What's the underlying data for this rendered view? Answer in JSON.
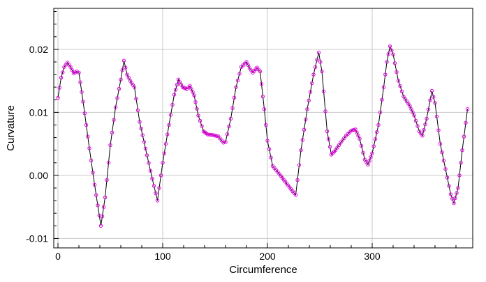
{
  "chart_data": {
    "type": "line",
    "title": "",
    "xlabel": "Circumference",
    "ylabel": "Curvature",
    "xlim": [
      -4,
      396
    ],
    "ylim": [
      -0.0115,
      0.0265
    ],
    "x_ticks": [
      0,
      100,
      200,
      300
    ],
    "x_tick_labels": [
      "0",
      "100",
      "200",
      "300"
    ],
    "y_ticks": [
      -0.01,
      0.0,
      0.01,
      0.02
    ],
    "y_tick_labels": [
      "-0.01",
      "0.00",
      "0.01",
      "0.02"
    ],
    "grid": true,
    "colors": {
      "line": "#000000",
      "markers": "#e600e6",
      "grid": "#c8c8c8",
      "frame": "#000000"
    },
    "series": [
      {
        "marker": "circle",
        "knots": [
          [
            0,
            0.0123
          ],
          [
            3,
            0.0155
          ],
          [
            6,
            0.0172
          ],
          [
            9,
            0.0179
          ],
          [
            12,
            0.0172
          ],
          [
            15,
            0.0162
          ],
          [
            18,
            0.0165
          ],
          [
            20,
            0.0163
          ],
          [
            24,
            0.0117
          ],
          [
            30,
            0.0043
          ],
          [
            35,
            -0.0015
          ],
          [
            41,
            -0.008
          ],
          [
            45,
            -0.0035
          ],
          [
            50,
            0.0048
          ],
          [
            55,
            0.0108
          ],
          [
            60,
            0.0152
          ],
          [
            63,
            0.0182
          ],
          [
            66,
            0.016
          ],
          [
            69,
            0.015
          ],
          [
            73,
            0.014
          ],
          [
            78,
            0.0085
          ],
          [
            85,
            0.0032
          ],
          [
            90,
            -0.0005
          ],
          [
            95,
            -0.004
          ],
          [
            100,
            0.002
          ],
          [
            106,
            0.008
          ],
          [
            111,
            0.0128
          ],
          [
            115,
            0.0152
          ],
          [
            119,
            0.014
          ],
          [
            123,
            0.0137
          ],
          [
            126,
            0.0142
          ],
          [
            130,
            0.0127
          ],
          [
            134,
            0.0095
          ],
          [
            139,
            0.007
          ],
          [
            143,
            0.0065
          ],
          [
            148,
            0.0064
          ],
          [
            153,
            0.0062
          ],
          [
            158,
            0.0052
          ],
          [
            160,
            0.0053
          ],
          [
            165,
            0.009
          ],
          [
            170,
            0.014
          ],
          [
            175,
            0.0172
          ],
          [
            180,
            0.018
          ],
          [
            183,
            0.017
          ],
          [
            186,
            0.0163
          ],
          [
            190,
            0.0171
          ],
          [
            193,
            0.0165
          ],
          [
            197,
            0.0105
          ],
          [
            200,
            0.0055
          ],
          [
            205,
            0.0015
          ],
          [
            210,
            0.0005
          ],
          [
            217,
            -0.001
          ],
          [
            224,
            -0.0025
          ],
          [
            227,
            -0.0031
          ],
          [
            232,
            0.004
          ],
          [
            238,
            0.0105
          ],
          [
            244,
            0.016
          ],
          [
            249,
            0.0195
          ],
          [
            252,
            0.0165
          ],
          [
            257,
            0.007
          ],
          [
            261,
            0.0033
          ],
          [
            265,
            0.004
          ],
          [
            270,
            0.0052
          ],
          [
            275,
            0.0063
          ],
          [
            280,
            0.0071
          ],
          [
            284,
            0.0073
          ],
          [
            288,
            0.0058
          ],
          [
            293,
            0.0025
          ],
          [
            296,
            0.0017
          ],
          [
            300,
            0.0035
          ],
          [
            306,
            0.008
          ],
          [
            311,
            0.014
          ],
          [
            314,
            0.018
          ],
          [
            317,
            0.0205
          ],
          [
            320,
            0.0192
          ],
          [
            325,
            0.015
          ],
          [
            330,
            0.0125
          ],
          [
            336,
            0.011
          ],
          [
            340,
            0.0095
          ],
          [
            345,
            0.007
          ],
          [
            348,
            0.0063
          ],
          [
            352,
            0.009
          ],
          [
            357,
            0.0134
          ],
          [
            360,
            0.0115
          ],
          [
            365,
            0.005
          ],
          [
            370,
            0.001
          ],
          [
            375,
            -0.003
          ],
          [
            378,
            -0.0044
          ],
          [
            382,
            -0.002
          ],
          [
            386,
            0.004
          ],
          [
            391,
            0.0105
          ]
        ]
      }
    ]
  }
}
